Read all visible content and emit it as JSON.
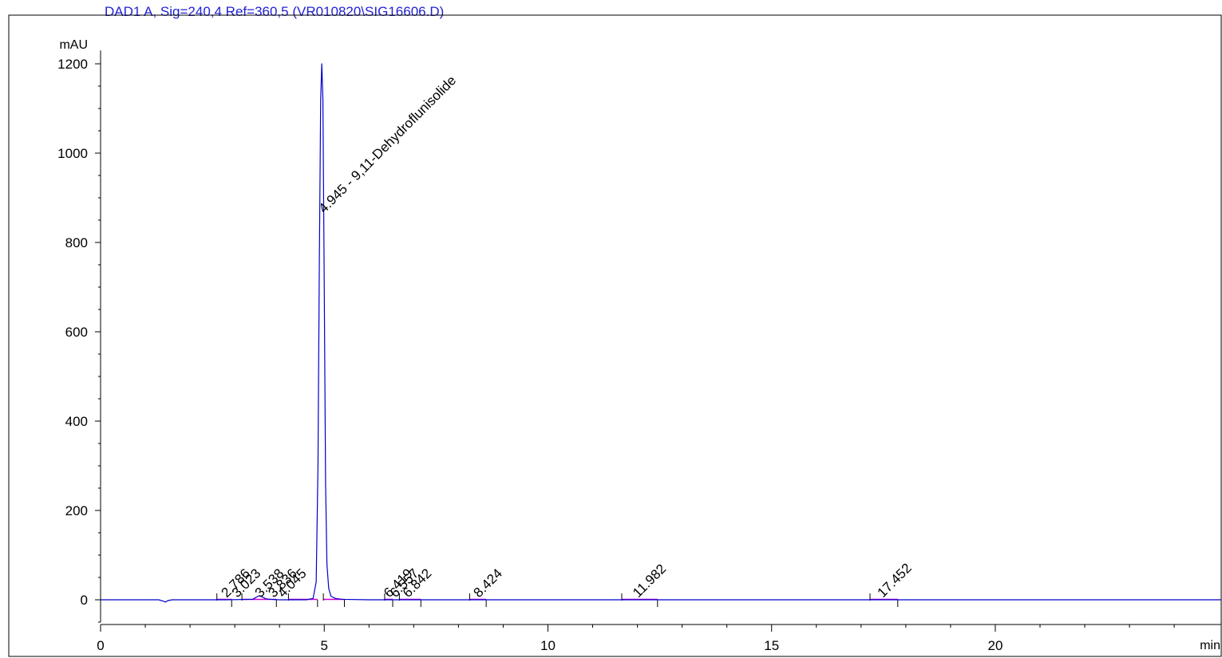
{
  "chart_data": {
    "type": "line",
    "title": "DAD1 A, Sig=240,4 Ref=360,5 (VR010820\\SIG16606.D)",
    "xlabel": "min",
    "ylabel": "mAU",
    "xlim": [
      0,
      25.05
    ],
    "ylim": [
      -50,
      1230
    ],
    "x_ticks": [
      0,
      5,
      10,
      15,
      20
    ],
    "y_ticks": [
      0,
      200,
      400,
      600,
      800,
      1000,
      1200
    ],
    "grid": false,
    "colors": {
      "signal": "#0000cc",
      "baseline": "#d000d0",
      "title": "#1f1fd6",
      "axis": "#000000"
    },
    "series": [
      {
        "x": [
          0,
          1.3,
          1.4,
          1.45,
          1.5,
          1.6,
          2.8,
          3.4,
          3.5,
          3.55,
          3.6,
          3.7,
          3.8,
          4.0,
          4.6,
          4.75,
          4.82,
          4.86,
          4.89,
          4.92,
          4.945,
          4.97,
          5.0,
          5.03,
          5.06,
          5.1,
          5.15,
          5.25,
          5.4,
          6.0,
          25.05
        ],
        "y": [
          0,
          0,
          -3,
          -5,
          -2,
          0,
          0,
          1,
          7,
          9,
          7,
          2,
          1,
          0,
          0,
          3,
          40,
          300,
          750,
          1120,
          1200,
          1120,
          700,
          260,
          80,
          25,
          8,
          3,
          1,
          0,
          0
        ]
      }
    ],
    "peaks": [
      {
        "rt": 2.786,
        "label": "2.786"
      },
      {
        "rt": 3.023,
        "label": "3.023"
      },
      {
        "rt": 3.538,
        "label": "3.538"
      },
      {
        "rt": 3.836,
        "label": "3.836"
      },
      {
        "rt": 4.045,
        "label": "4.045"
      },
      {
        "rt": 4.945,
        "label": "4.945 - 9,11-Dehydroflunisolide"
      },
      {
        "rt": 6.419,
        "label": "6.419"
      },
      {
        "rt": 6.557,
        "label": "6.557"
      },
      {
        "rt": 6.842,
        "label": "6.842"
      },
      {
        "rt": 8.424,
        "label": "8.424"
      },
      {
        "rt": 11.982,
        "label": "11.982"
      },
      {
        "rt": 17.452,
        "label": "17.452"
      }
    ],
    "integration_segments": [
      [
        2.6,
        2.93
      ],
      [
        3.16,
        3.93
      ],
      [
        4.2,
        4.85
      ],
      [
        4.98,
        5.45
      ],
      [
        6.35,
        6.53
      ],
      [
        6.68,
        7.16
      ],
      [
        8.25,
        8.62
      ],
      [
        11.65,
        12.45
      ],
      [
        17.2,
        17.82
      ]
    ]
  }
}
